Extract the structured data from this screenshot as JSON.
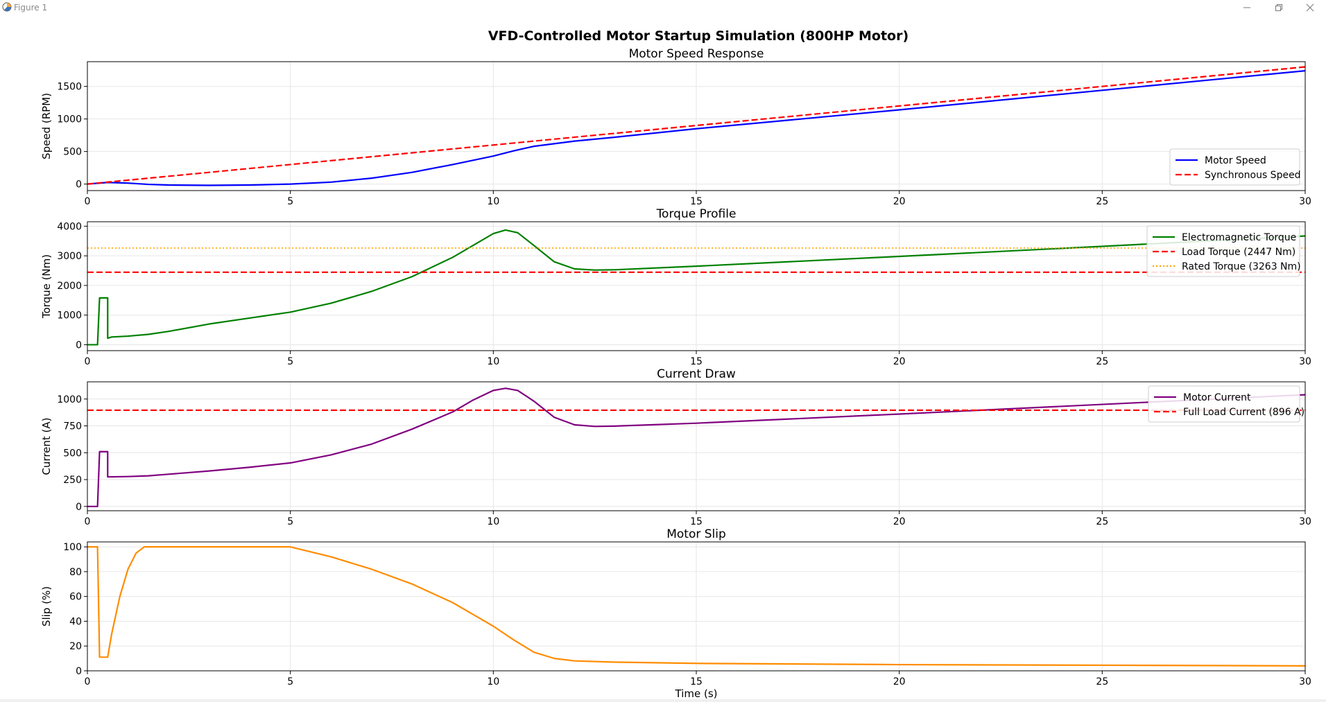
{
  "window": {
    "title": "Figure 1",
    "icons": [
      "matplotlib-figure-icon",
      "minimize-icon",
      "maximize-icon",
      "close-icon"
    ]
  },
  "figure": {
    "suptitle": "VFD-Controlled Motor Startup Simulation (800HP Motor)"
  },
  "colors": {
    "motor_speed": "#0000ff",
    "synchronous_speed": "#ff0000",
    "electromagnetic_torque": "#008000",
    "load_torque": "#ff0000",
    "rated_torque": "#ffa500",
    "motor_current": "#800080",
    "full_load_current": "#ff0000",
    "motor_slip": "#ff8c00",
    "grid": "#e6e6e6"
  },
  "chart_data": [
    {
      "type": "line",
      "title": "Motor Speed Response",
      "xlabel": "",
      "ylabel": "Speed (RPM)",
      "xlim": [
        0,
        30
      ],
      "ylim": [
        -100,
        1880
      ],
      "xticks": [
        0,
        5,
        10,
        15,
        20,
        25,
        30
      ],
      "yticks": [
        0,
        500,
        1000,
        1500
      ],
      "grid": true,
      "legend": "lower right",
      "series": [
        {
          "name": "Motor Speed",
          "color": "#0000ff",
          "style": "solid",
          "x": [
            0,
            0.5,
            1,
            1.5,
            2,
            3,
            4,
            5,
            6,
            7,
            8,
            9,
            10,
            10.5,
            11,
            12,
            13,
            15,
            20,
            25,
            30
          ],
          "y": [
            0,
            25,
            15,
            -5,
            -15,
            -20,
            -15,
            0,
            30,
            90,
            180,
            300,
            430,
            510,
            580,
            660,
            720,
            850,
            1140,
            1440,
            1740
          ]
        },
        {
          "name": "Synchronous Speed",
          "color": "#ff0000",
          "style": "dashed",
          "x": [
            0,
            30
          ],
          "y": [
            0,
            1800
          ]
        }
      ]
    },
    {
      "type": "line",
      "title": "Torque Profile",
      "xlabel": "",
      "ylabel": "Torque (Nm)",
      "xlim": [
        0,
        30
      ],
      "ylim": [
        -200,
        4150
      ],
      "xticks": [
        0,
        5,
        10,
        15,
        20,
        25,
        30
      ],
      "yticks": [
        0,
        1000,
        2000,
        3000,
        4000
      ],
      "grid": true,
      "legend": "upper right",
      "series": [
        {
          "name": "Electromagnetic Torque",
          "color": "#008000",
          "style": "solid",
          "x": [
            0,
            0.25,
            0.3,
            0.5,
            0.5,
            0.6,
            1,
            1.5,
            2,
            3,
            4,
            5,
            6,
            7,
            8,
            9,
            9.5,
            10,
            10.3,
            10.6,
            11,
            11.5,
            12,
            12.5,
            13,
            15,
            20,
            25,
            30
          ],
          "y": [
            0,
            0,
            1580,
            1580,
            220,
            260,
            290,
            350,
            450,
            700,
            900,
            1100,
            1400,
            1800,
            2300,
            2950,
            3350,
            3750,
            3870,
            3780,
            3350,
            2800,
            2560,
            2520,
            2530,
            2650,
            2980,
            3320,
            3670
          ]
        },
        {
          "name": "Load Torque (2447 Nm)",
          "color": "#ff0000",
          "style": "dashed",
          "x": [
            0,
            30
          ],
          "y": [
            2447,
            2447
          ]
        },
        {
          "name": "Rated Torque (3263 Nm)",
          "color": "#ffa500",
          "style": "dotted",
          "x": [
            0,
            30
          ],
          "y": [
            3263,
            3263
          ]
        }
      ]
    },
    {
      "type": "line",
      "title": "Current Draw",
      "xlabel": "",
      "ylabel": "Current (A)",
      "xlim": [
        0,
        30
      ],
      "ylim": [
        -40,
        1160
      ],
      "xticks": [
        0,
        5,
        10,
        15,
        20,
        25,
        30
      ],
      "yticks": [
        0,
        250,
        500,
        750,
        1000
      ],
      "grid": true,
      "legend": "upper right",
      "series": [
        {
          "name": "Motor Current",
          "color": "#800080",
          "style": "solid",
          "x": [
            0,
            0.25,
            0.3,
            0.5,
            0.5,
            1,
            1.5,
            2,
            3,
            4,
            5,
            6,
            7,
            8,
            9,
            9.5,
            10,
            10.3,
            10.6,
            11,
            11.5,
            12,
            12.5,
            13,
            15,
            20,
            25,
            30
          ],
          "y": [
            0,
            0,
            510,
            510,
            275,
            278,
            285,
            300,
            330,
            365,
            405,
            480,
            580,
            720,
            880,
            990,
            1080,
            1100,
            1080,
            980,
            830,
            760,
            745,
            748,
            775,
            860,
            950,
            1040
          ]
        },
        {
          "name": "Full Load Current (896 A)",
          "color": "#ff0000",
          "style": "dashed",
          "x": [
            0,
            30
          ],
          "y": [
            896,
            896
          ]
        }
      ]
    },
    {
      "type": "line",
      "title": "Motor Slip",
      "xlabel": "Time (s)",
      "ylabel": "Slip (%)",
      "xlim": [
        0,
        30
      ],
      "ylim": [
        0,
        104
      ],
      "xticks": [
        0,
        5,
        10,
        15,
        20,
        25,
        30
      ],
      "yticks": [
        0,
        20,
        40,
        60,
        80,
        100
      ],
      "grid": true,
      "legend": "none",
      "series": [
        {
          "name": "",
          "color": "#ff8c00",
          "style": "solid",
          "x": [
            0,
            0.25,
            0.3,
            0.5,
            0.6,
            0.8,
            1,
            1.2,
            1.4,
            5,
            6,
            7,
            8,
            9,
            10,
            10.5,
            11,
            11.5,
            12,
            13,
            15,
            20,
            25,
            30
          ],
          "y": [
            100,
            100,
            11,
            11,
            30,
            60,
            82,
            95,
            100,
            100,
            92,
            82,
            70,
            55,
            36,
            25,
            15,
            10,
            8,
            7,
            6,
            5,
            4.5,
            4
          ]
        }
      ]
    }
  ]
}
